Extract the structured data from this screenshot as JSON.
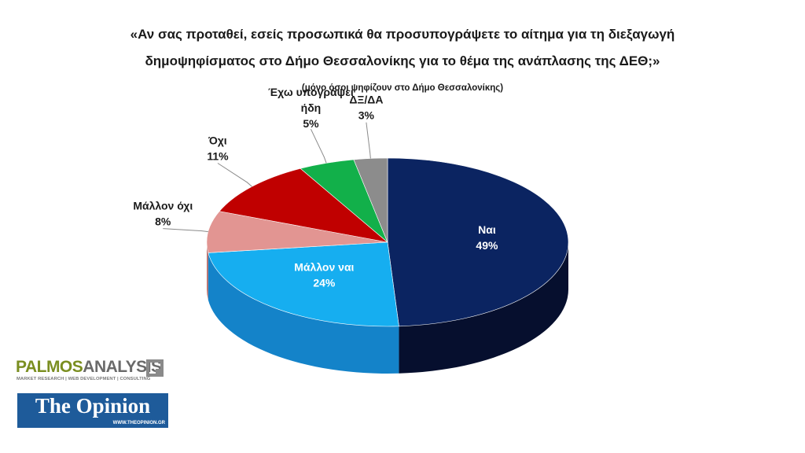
{
  "title_line1": "«Αν σας προταθεί, εσείς προσωπικά θα προσυπογράψετε το αίτημα για τη διεξαγωγή",
  "title_line2": "δημοψηφίσματος στο Δήμο Θεσσαλονίκης για το θέμα της ανάπλασης της ΔΕΘ;»",
  "subtitle": "(μόνο όσοι ψηφίζουν στο Δήμο Θεσσαλονίκης)",
  "chart_data": {
    "type": "pie",
    "style": "3d",
    "slices": [
      {
        "label": "Ναι",
        "label_lines": [
          "Ναι"
        ],
        "value_label": "49%",
        "value": 49,
        "color": "#0b2461",
        "side_color": "#060f2e"
      },
      {
        "label": "Μάλλον ναι",
        "label_lines": [
          "Μάλλον ναι"
        ],
        "value_label": "24%",
        "value": 24,
        "color": "#16aef0",
        "side_color": "#1483c9"
      },
      {
        "label": "Μάλλον όχι",
        "label_lines": [
          "Μάλλον όχι"
        ],
        "value_label": "8%",
        "value": 8,
        "color": "#e29592",
        "side_color": "#b86d6a"
      },
      {
        "label": "Όχι",
        "label_lines": [
          "Όχι"
        ],
        "value_label": "11%",
        "value": 11,
        "color": "#c00000",
        "side_color": "#8a0000"
      },
      {
        "label": "Έχω υπογράψει ήδη",
        "label_lines": [
          "Έχω υπογράψει",
          "ήδη"
        ],
        "value_label": "5%",
        "value": 5,
        "color": "#12b04a",
        "side_color": "#0b7f33"
      },
      {
        "label": "ΔΞ/ΔΑ",
        "label_lines": [
          "ΔΞ/ΔΑ"
        ],
        "value_label": "3%",
        "value": 3,
        "color": "#8c8c8c",
        "side_color": "#666666"
      }
    ],
    "legend": "none"
  },
  "logos": {
    "palmos_part1": "PALMOS",
    "palmos_part2": "ANALYSIS",
    "palmos_tagline": "MARKET RESEARCH | WEB DEVELOPMENT | CONSULTING",
    "opinion_title": "The Opinion",
    "opinion_url": "WWW.THEOPINION.GR"
  }
}
